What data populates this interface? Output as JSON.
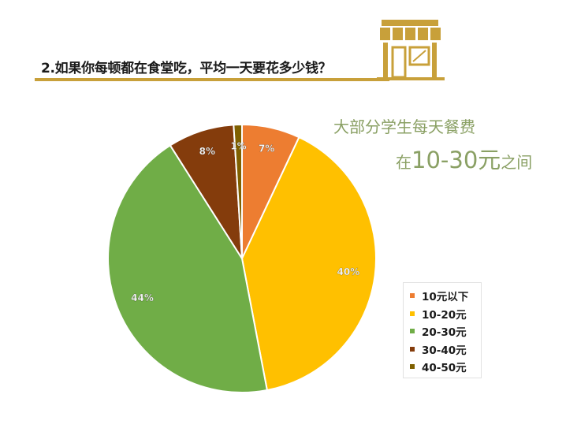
{
  "header": {
    "question": "2.如果你每顿都在食堂吃，平均一天要花多少钱？"
  },
  "annotation": {
    "line1": "大部分学生每天餐费",
    "line2_prefix": "在",
    "line2_range": "10-30元",
    "line2_suffix": "之间"
  },
  "icons": {
    "shop": "storefront-icon"
  },
  "chart_data": {
    "type": "pie",
    "categories": [
      "10元以下",
      "10-20元",
      "20-30元",
      "30-40元",
      "40-50元"
    ],
    "values": [
      7,
      40,
      44,
      8,
      1
    ],
    "labels": [
      "7%",
      "40%",
      "44%",
      "8%",
      "1%"
    ],
    "colors": [
      "#ed7d31",
      "#ffc000",
      "#70ad47",
      "#843c0c",
      "#7f6000"
    ],
    "legend_position": "right"
  }
}
